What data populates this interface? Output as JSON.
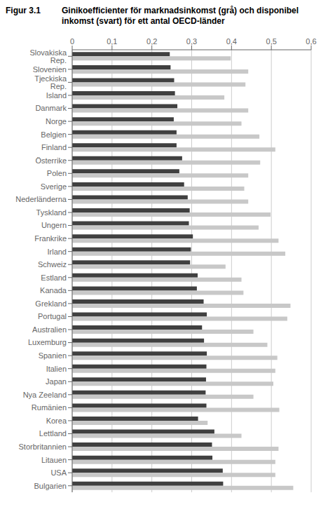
{
  "chart_data": {
    "type": "bar",
    "orientation": "horizontal",
    "title": "Figur 3.1",
    "subtitle": "Ginikoefficienter för marknadsinkomst (grå) och disponibel inkomst (svart) för ett antal OECD-länder",
    "categories": [
      "Slovakiska Rep.",
      "Slovenien",
      "Tjeckiska Rep.",
      "Island",
      "Danmark",
      "Norge",
      "Belgien",
      "Finland",
      "Österrike",
      "Polen",
      "Sverige",
      "Nederländerna",
      "Tyskland",
      "Ungern",
      "Frankrike",
      "Irland",
      "Schweiz",
      "Estland",
      "Kanada",
      "Grekland",
      "Portugal",
      "Australien",
      "Luxemburg",
      "Spanien",
      "Italien",
      "Japan",
      "Nya Zeeland",
      "Rumänien",
      "Korea",
      "Lettland",
      "Storbritannien",
      "Litauen",
      "USA",
      "Bulgarien"
    ],
    "series": [
      {
        "color": "#404040",
        "values": [
          0.245,
          0.247,
          0.256,
          0.258,
          0.264,
          0.255,
          0.262,
          0.262,
          0.276,
          0.269,
          0.281,
          0.29,
          0.295,
          0.293,
          0.303,
          0.298,
          0.296,
          0.315,
          0.313,
          0.33,
          0.338,
          0.326,
          0.331,
          0.338,
          0.337,
          0.336,
          0.335,
          0.337,
          0.316,
          0.357,
          0.351,
          0.352,
          0.378,
          0.379
        ]
      },
      {
        "color": "#c8c8c8",
        "values": [
          0.398,
          0.442,
          0.435,
          0.382,
          0.442,
          0.425,
          0.47,
          0.51,
          0.472,
          0.442,
          0.432,
          0.442,
          0.498,
          0.468,
          0.518,
          0.535,
          0.385,
          0.425,
          0.43,
          0.548,
          0.54,
          0.455,
          0.49,
          0.515,
          0.51,
          0.505,
          0.455,
          0.52,
          0.34,
          0.425,
          0.518,
          0.51,
          0.51,
          0.555
        ]
      }
    ],
    "xlim": [
      0,
      0.6
    ],
    "xticks": [
      0,
      {
        "value": 0.1,
        "label": "0,1"
      },
      {
        "value": 0.2,
        "label": "0,2"
      },
      {
        "value": 0.3,
        "label": "0,3"
      },
      {
        "value": 0.4,
        "label": "0,4"
      },
      {
        "value": 0.5,
        "label": "0,5"
      },
      {
        "value": 0.6,
        "label": "0,6"
      }
    ],
    "grid": true
  }
}
